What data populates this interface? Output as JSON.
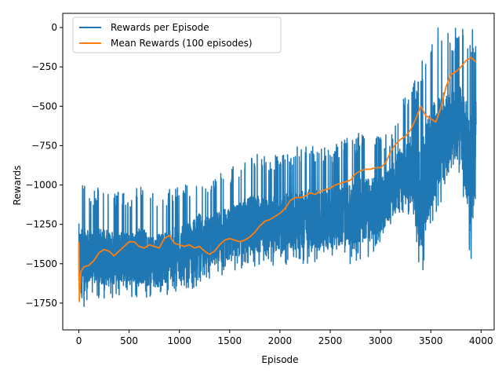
{
  "chart_data": {
    "type": "line",
    "title": "",
    "xlabel": "Episode",
    "ylabel": "Rewards",
    "xlim": [
      -160,
      4130
    ],
    "ylim": [
      -1920,
      90
    ],
    "x_ticks": [
      0,
      500,
      1000,
      1500,
      2000,
      2500,
      3000,
      3500,
      4000
    ],
    "y_ticks": [
      0,
      -250,
      -500,
      -750,
      -1000,
      -1250,
      -1500,
      -1750
    ],
    "x_tick_labels": [
      "0",
      "500",
      "1000",
      "1500",
      "2000",
      "2500",
      "3000",
      "3500",
      "4000"
    ],
    "y_tick_labels": [
      "0",
      "−250",
      "−500",
      "−750",
      "−1000",
      "−1250",
      "−1500",
      "−1750"
    ],
    "grid": false,
    "legend_position": "upper-left",
    "series": [
      {
        "name": "Rewards per Episode",
        "color": "#1f77b4",
        "x_range": [
          0,
          3950
        ],
        "points": 3951,
        "envelope": {
          "x": [
            0,
            100,
            200,
            300,
            400,
            500,
            600,
            700,
            800,
            900,
            1000,
            1100,
            1200,
            1300,
            1400,
            1500,
            1600,
            1700,
            1800,
            1900,
            2000,
            2100,
            2200,
            2300,
            2400,
            2500,
            2600,
            2700,
            2800,
            2900,
            3000,
            3100,
            3200,
            3300,
            3400,
            3500,
            3600,
            3700,
            3800,
            3900,
            3950
          ],
          "low": [
            -1900,
            -1700,
            -1720,
            -1740,
            -1700,
            -1720,
            -1720,
            -1730,
            -1740,
            -1700,
            -1720,
            -1660,
            -1650,
            -1600,
            -1580,
            -1560,
            -1540,
            -1530,
            -1530,
            -1520,
            -1520,
            -1510,
            -1510,
            -1500,
            -1500,
            -1510,
            -1490,
            -1500,
            -1480,
            -1460,
            -1400,
            -1300,
            -1240,
            -1180,
            -1640,
            -1330,
            -1150,
            -1050,
            -1000,
            -1500,
            -1050
          ],
          "high": [
            -860,
            -1050,
            -1000,
            -1030,
            -1040,
            -1060,
            -1000,
            -1050,
            -1060,
            -1020,
            -1000,
            -1000,
            -900,
            -970,
            -920,
            -900,
            -850,
            -800,
            -800,
            -820,
            -800,
            -780,
            -750,
            -750,
            -770,
            -750,
            -710,
            -700,
            -650,
            -660,
            -680,
            -660,
            -460,
            -400,
            -200,
            0,
            0,
            0,
            0,
            0,
            -40
          ]
        }
      },
      {
        "name": "Mean Rewards (100 episodes)",
        "color": "#ff7f0e",
        "x": [
          0,
          5,
          20,
          50,
          100,
          150,
          200,
          250,
          300,
          350,
          400,
          450,
          500,
          550,
          600,
          650,
          700,
          750,
          800,
          850,
          900,
          950,
          1000,
          1050,
          1100,
          1150,
          1200,
          1250,
          1300,
          1350,
          1400,
          1450,
          1500,
          1550,
          1600,
          1650,
          1700,
          1750,
          1800,
          1850,
          1900,
          1950,
          2000,
          2050,
          2100,
          2150,
          2200,
          2250,
          2300,
          2350,
          2400,
          2450,
          2500,
          2550,
          2600,
          2650,
          2700,
          2750,
          2800,
          2850,
          2900,
          2950,
          3000,
          3050,
          3100,
          3150,
          3200,
          3250,
          3300,
          3350,
          3400,
          3450,
          3500,
          3550,
          3600,
          3650,
          3700,
          3750,
          3800,
          3850,
          3900,
          3950
        ],
        "y": [
          -1360,
          -1740,
          -1550,
          -1520,
          -1510,
          -1480,
          -1430,
          -1410,
          -1420,
          -1450,
          -1420,
          -1390,
          -1360,
          -1360,
          -1390,
          -1400,
          -1380,
          -1390,
          -1400,
          -1340,
          -1320,
          -1370,
          -1380,
          -1390,
          -1380,
          -1400,
          -1390,
          -1420,
          -1440,
          -1420,
          -1380,
          -1350,
          -1340,
          -1350,
          -1360,
          -1350,
          -1330,
          -1300,
          -1260,
          -1230,
          -1220,
          -1200,
          -1180,
          -1150,
          -1100,
          -1080,
          -1080,
          -1070,
          -1050,
          -1060,
          -1040,
          -1030,
          -1020,
          -1000,
          -990,
          -980,
          -970,
          -930,
          -910,
          -900,
          -900,
          -890,
          -890,
          -860,
          -790,
          -740,
          -710,
          -690,
          -650,
          -580,
          -500,
          -560,
          -580,
          -600,
          -510,
          -380,
          -300,
          -280,
          -250,
          -210,
          -190,
          -220
        ]
      }
    ]
  }
}
